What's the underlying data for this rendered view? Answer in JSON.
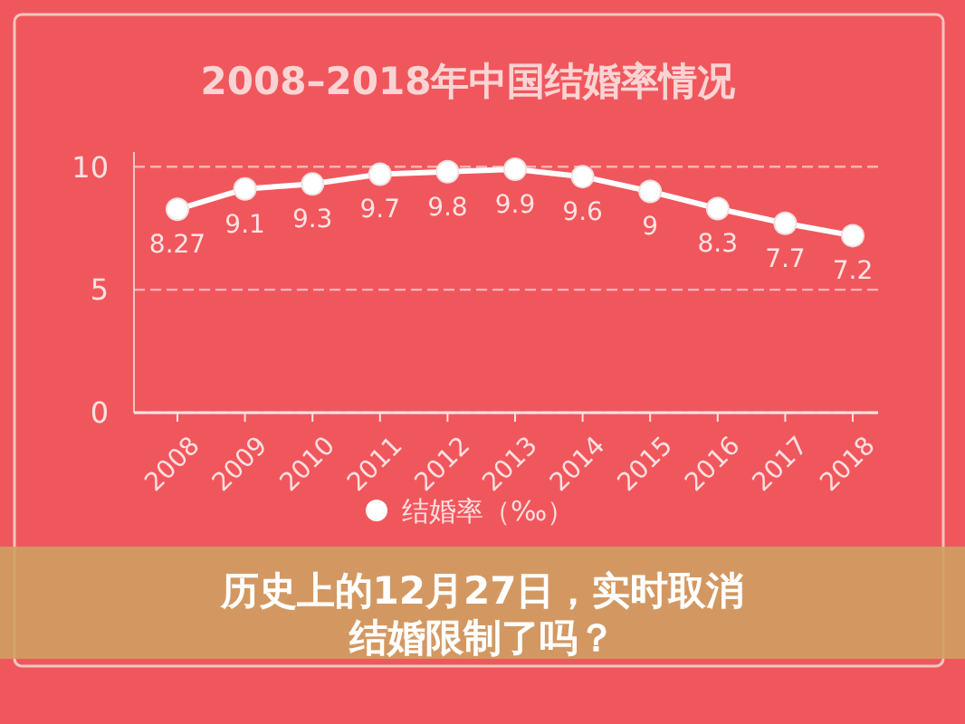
{
  "chart_data": {
    "type": "line",
    "title": "2008–2018年中国结婚率情况",
    "categories": [
      "2008",
      "2009",
      "2010",
      "2011",
      "2012",
      "2013",
      "2014",
      "2015",
      "2016",
      "2017",
      "2018"
    ],
    "series": [
      {
        "name": "结婚率（‰）",
        "color": "#ffffff",
        "values": [
          8.27,
          9.1,
          9.3,
          9.7,
          9.8,
          9.9,
          9.6,
          9,
          8.3,
          7.7,
          7.2
        ]
      }
    ],
    "ylim": [
      0,
      10.6
    ],
    "yticks": [
      0,
      5,
      10
    ],
    "grid": "y",
    "legend": "bottom",
    "marker": "circle",
    "data_labels": true,
    "annotations": [
      "历史上的12月27日，实时取消结婚限制了吗？"
    ]
  }
}
